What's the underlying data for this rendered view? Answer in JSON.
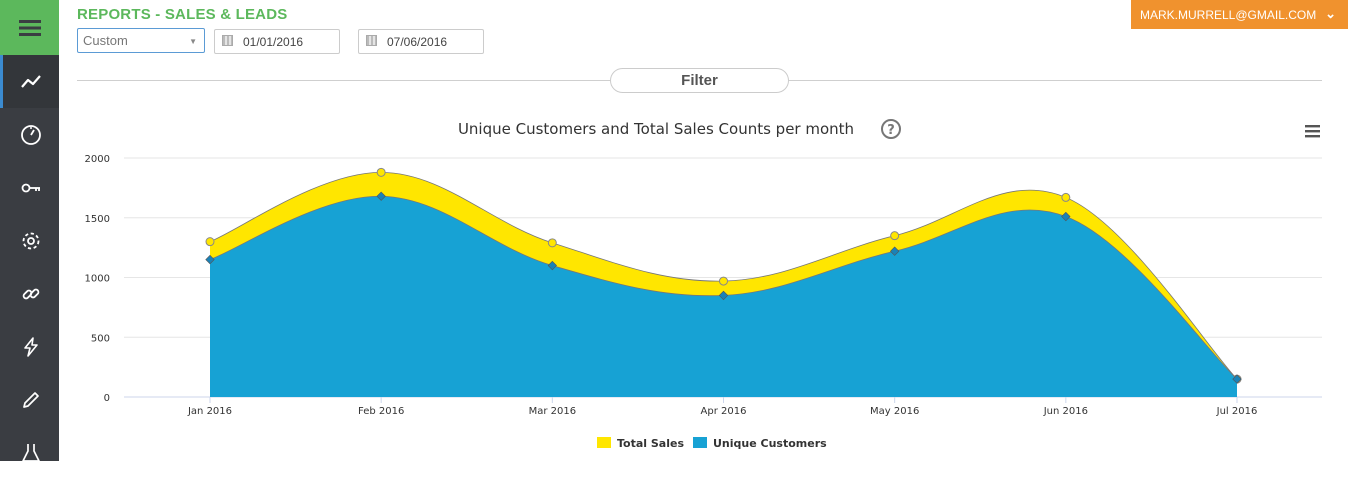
{
  "header": {
    "title": "REPORTS - SALES & LEADS",
    "range_select": "Custom",
    "date_from": "01/01/2016",
    "date_to": "07/06/2016",
    "user_email": "MARK.MURRELL@GMAIL.COM",
    "filter_label": "Filter"
  },
  "sidebar": {
    "items": [
      {
        "icon": "trend-line-icon",
        "active": true
      },
      {
        "icon": "gauge-icon",
        "active": false
      },
      {
        "icon": "key-icon",
        "active": false
      },
      {
        "icon": "gear-icon",
        "active": false
      },
      {
        "icon": "link-icon",
        "active": false
      },
      {
        "icon": "lightning-icon",
        "active": false
      },
      {
        "icon": "pencil-icon",
        "active": false
      },
      {
        "icon": "flask-icon",
        "active": false
      }
    ]
  },
  "colors": {
    "accent_green": "#5cb85c",
    "user_orange": "#f0922e",
    "sidebar_bg": "#3a3d42",
    "total_sales": "#ffe600",
    "unique_customers": "#17a2d4"
  },
  "chart_data": {
    "type": "area",
    "title": "Unique Customers and Total Sales Counts per month",
    "categories": [
      "Jan 2016",
      "Feb 2016",
      "Mar 2016",
      "Apr 2016",
      "May 2016",
      "Jun 2016",
      "Jul 2016"
    ],
    "ylim": [
      0,
      2000
    ],
    "yticks": [
      0,
      500,
      1000,
      1500,
      2000
    ],
    "grid": true,
    "legend_position": "bottom",
    "stacked": false,
    "series": [
      {
        "name": "Total Sales",
        "color": "#ffe600",
        "values": [
          1300,
          1880,
          1290,
          970,
          1350,
          1670,
          150
        ]
      },
      {
        "name": "Unique Customers",
        "color": "#17a2d4",
        "values": [
          1150,
          1680,
          1100,
          850,
          1220,
          1510,
          150
        ]
      }
    ]
  }
}
